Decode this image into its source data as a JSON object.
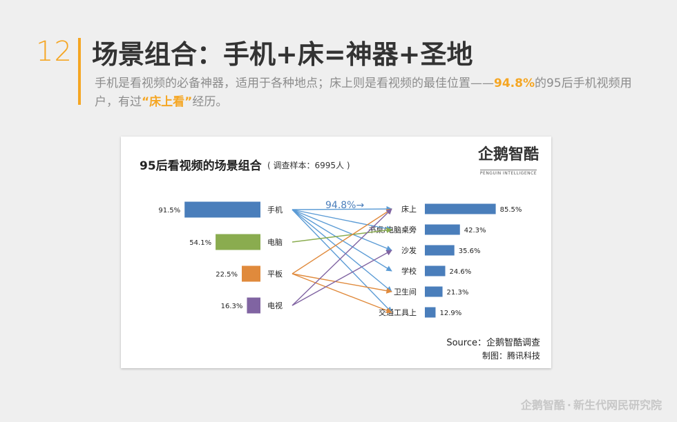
{
  "slide": {
    "number": "12",
    "title": "场景组合：手机+床=神器+圣地",
    "subtitle_part1": "手机是看视频的必备神器，适用于各种地点；床上则是看视频的最佳位置——",
    "subtitle_highlight1": "94.8%",
    "subtitle_part2": "的95后手机视频用户，有过",
    "subtitle_highlight2": "“床上看”",
    "subtitle_part3": "经历。"
  },
  "chart_data": {
    "type": "bar",
    "title": "95后看视频的场景组合",
    "subtitle": "( 调查样本：6995人 )",
    "devices": {
      "categories": [
        "手机",
        "电脑",
        "平板",
        "电视"
      ],
      "values": [
        91.5,
        54.1,
        22.5,
        16.3
      ],
      "value_labels": [
        "91.5%",
        "54.1%",
        "22.5%",
        "16.3%"
      ],
      "colors": [
        "#4a7ebb",
        "#8aac4f",
        "#e08a3c",
        "#8064a2"
      ]
    },
    "scenes": {
      "categories": [
        "床上",
        "书桌/电脑桌旁",
        "沙发",
        "学校",
        "卫生间",
        "交通工具上"
      ],
      "values": [
        85.5,
        42.3,
        35.6,
        24.6,
        21.3,
        12.9
      ],
      "value_labels": [
        "85.5%",
        "42.3%",
        "35.6%",
        "24.6%",
        "21.3%",
        "12.9%"
      ],
      "color": "#4a7ebb"
    },
    "links": [
      {
        "from": 0,
        "to": 0,
        "color": "#5b9bd5"
      },
      {
        "from": 0,
        "to": 1,
        "color": "#5b9bd5"
      },
      {
        "from": 0,
        "to": 2,
        "color": "#5b9bd5"
      },
      {
        "from": 0,
        "to": 3,
        "color": "#5b9bd5"
      },
      {
        "from": 0,
        "to": 4,
        "color": "#5b9bd5"
      },
      {
        "from": 0,
        "to": 5,
        "color": "#5b9bd5"
      },
      {
        "from": 1,
        "to": 1,
        "color": "#8aac4f"
      },
      {
        "from": 2,
        "to": 0,
        "color": "#e08a3c"
      },
      {
        "from": 2,
        "to": 4,
        "color": "#e08a3c"
      },
      {
        "from": 2,
        "to": 5,
        "color": "#e08a3c"
      },
      {
        "from": 3,
        "to": 0,
        "color": "#8064a2"
      },
      {
        "from": 3,
        "to": 2,
        "color": "#8064a2"
      }
    ],
    "callout": "94.8%→",
    "callout_color": "#4a7ebb",
    "source": "Source：企鹅智酷调查",
    "credit": "制图：腾讯科技",
    "logo_cn": "企鹅智酷",
    "logo_en": "PENGUIN INTELLIGENCE"
  },
  "footer": {
    "brand": "企鹅智酷",
    "separator": "·",
    "org": "新生代网民研究院"
  }
}
